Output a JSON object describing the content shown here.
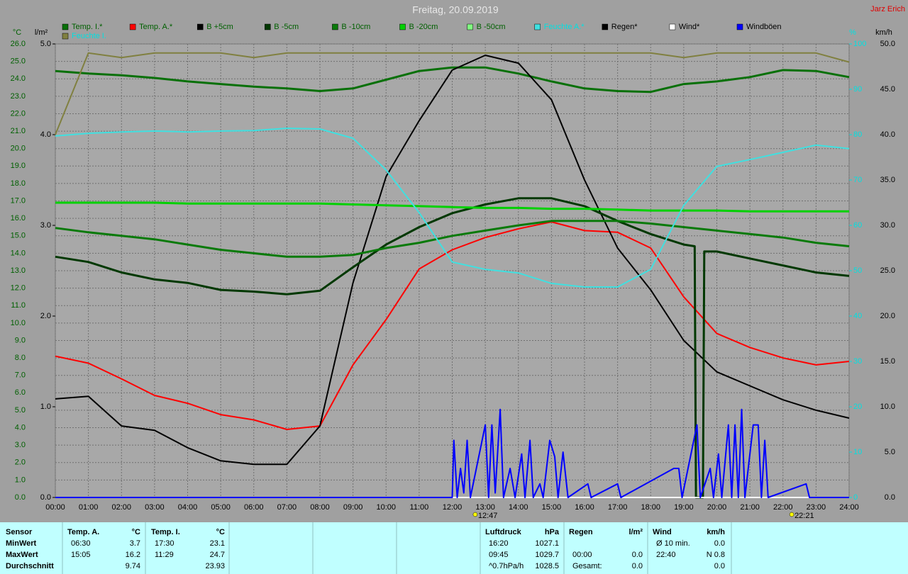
{
  "chart_data": {
    "type": "line",
    "title": "Freitag, 20.09.2019",
    "author": "Jarz Erich",
    "y_label": "°C",
    "y2_label": "l/m²",
    "y3_label": "%",
    "y4_label": "km/h",
    "x": [
      0,
      1,
      2,
      3,
      4,
      5,
      6,
      7,
      8,
      9,
      10,
      11,
      12,
      13,
      14,
      15,
      16,
      17,
      18,
      19,
      20,
      21,
      22,
      23,
      24
    ],
    "xlim": [
      0,
      24
    ],
    "xticks": [
      {
        "value": 0,
        "label": "00:00"
      },
      {
        "value": 1,
        "label": "01:00"
      },
      {
        "value": 2,
        "label": "02:00"
      },
      {
        "value": 3,
        "label": "03:00"
      },
      {
        "value": 4,
        "label": "04:00"
      },
      {
        "value": 5,
        "label": "05:00"
      },
      {
        "value": 6,
        "label": "06:00"
      },
      {
        "value": 7,
        "label": "07:00"
      },
      {
        "value": 8,
        "label": "08:00"
      },
      {
        "value": 9,
        "label": "09:00"
      },
      {
        "value": 10,
        "label": "10:00"
      },
      {
        "value": 11,
        "label": "11:00"
      },
      {
        "value": 12,
        "label": "12:00"
      },
      {
        "value": 13,
        "label": "13:00"
      },
      {
        "value": 14,
        "label": "14:00"
      },
      {
        "value": 15,
        "label": "15:00"
      },
      {
        "value": 16,
        "label": "16:00"
      },
      {
        "value": 17,
        "label": "17:00"
      },
      {
        "value": 18,
        "label": "18:00"
      },
      {
        "value": 19,
        "label": "19:00"
      },
      {
        "value": 20,
        "label": "20:00"
      },
      {
        "value": 21,
        "label": "21:00"
      },
      {
        "value": 22,
        "label": "22:00"
      },
      {
        "value": 23,
        "label": "23:00"
      },
      {
        "value": 24,
        "label": "24:00"
      }
    ],
    "ylim": [
      0,
      26
    ],
    "yticks": [
      {
        "value": 0,
        "label": "0.0"
      },
      {
        "value": 1,
        "label": "1.0"
      },
      {
        "value": 2,
        "label": "2.0"
      },
      {
        "value": 3,
        "label": "3.0"
      },
      {
        "value": 4,
        "label": "4.0"
      },
      {
        "value": 5,
        "label": "5.0"
      },
      {
        "value": 6,
        "label": "6.0"
      },
      {
        "value": 7,
        "label": "7.0"
      },
      {
        "value": 8,
        "label": "8.0"
      },
      {
        "value": 9,
        "label": "9.0"
      },
      {
        "value": 10,
        "label": "10.0"
      },
      {
        "value": 11,
        "label": "11.0"
      },
      {
        "value": 12,
        "label": "12.0"
      },
      {
        "value": 13,
        "label": "13.0"
      },
      {
        "value": 14,
        "label": "14.0"
      },
      {
        "value": 15,
        "label": "15.0"
      },
      {
        "value": 16,
        "label": "16.0"
      },
      {
        "value": 17,
        "label": "17.0"
      },
      {
        "value": 18,
        "label": "18.0"
      },
      {
        "value": 19,
        "label": "19.0"
      },
      {
        "value": 20,
        "label": "20.0"
      },
      {
        "value": 21,
        "label": "21.0"
      },
      {
        "value": 22,
        "label": "22.0"
      },
      {
        "value": 23,
        "label": "23.0"
      },
      {
        "value": 24,
        "label": "24.0"
      },
      {
        "value": 25,
        "label": "25.0"
      },
      {
        "value": 26,
        "label": "26.0"
      }
    ],
    "y2lim": [
      0,
      5
    ],
    "y2ticks": [
      {
        "value": 0,
        "label": "0.0"
      },
      {
        "value": 1,
        "label": "1.0"
      },
      {
        "value": 2,
        "label": "2.0"
      },
      {
        "value": 3,
        "label": "3.0"
      },
      {
        "value": 4,
        "label": "4.0"
      },
      {
        "value": 5,
        "label": "5.0"
      }
    ],
    "y3lim": [
      0,
      100
    ],
    "y3ticks": [
      0,
      10,
      20,
      30,
      40,
      50,
      60,
      70,
      80,
      90,
      100
    ],
    "y4lim": [
      0,
      50
    ],
    "y4ticks": [
      {
        "value": 0,
        "label": "0.0"
      },
      {
        "value": 5,
        "label": "5.0"
      },
      {
        "value": 10,
        "label": "10.0"
      },
      {
        "value": 15,
        "label": "15.0"
      },
      {
        "value": 20,
        "label": "20.0"
      },
      {
        "value": 25,
        "label": "25.0"
      },
      {
        "value": 30,
        "label": "30.0"
      },
      {
        "value": 35,
        "label": "35.0"
      },
      {
        "value": 40,
        "label": "40.0"
      },
      {
        "value": 45,
        "label": "45.0"
      },
      {
        "value": 50,
        "label": "50.0"
      }
    ],
    "grid": true,
    "series": [
      {
        "name": "Temp. I.*",
        "color": "#087008",
        "values": [
          24.45,
          24.3,
          24.2,
          24.05,
          23.85,
          23.7,
          23.55,
          23.45,
          23.3,
          23.45,
          23.95,
          24.45,
          24.65,
          24.65,
          24.3,
          23.85,
          23.45,
          23.3,
          23.25,
          23.7,
          23.85,
          24.1,
          24.5,
          24.45,
          24.1
        ]
      },
      {
        "name": "Temp. A.*",
        "color": "#ff0000",
        "values": [
          8.1,
          7.7,
          6.8,
          5.85,
          5.4,
          4.75,
          4.45,
          3.9,
          4.1,
          7.6,
          10.2,
          13.1,
          14.2,
          14.9,
          15.4,
          15.8,
          15.3,
          15.2,
          14.3,
          11.5,
          9.4,
          8.6,
          8.0,
          7.6,
          7.8
        ]
      },
      {
        "name": "B +5cm",
        "color": "#000000",
        "values": [
          5.65,
          5.8,
          4.1,
          3.85,
          2.85,
          2.1,
          1.9,
          1.9,
          4.1,
          12.3,
          18.4,
          21.6,
          24.5,
          25.35,
          24.9,
          22.8,
          18.2,
          14.3,
          11.9,
          9.0,
          7.2,
          6.4,
          5.6,
          5.0,
          4.55
        ]
      },
      {
        "name": "B -5cm",
        "color": "#003800",
        "x": [
          0,
          1,
          2,
          3,
          4,
          5,
          6,
          7,
          8,
          9,
          10,
          11,
          12,
          13,
          14,
          15,
          16,
          17,
          18,
          19,
          19.33,
          19.37,
          19.58,
          19.62,
          20,
          21,
          22,
          23,
          24
        ],
        "values": [
          13.8,
          13.5,
          12.9,
          12.5,
          12.3,
          11.9,
          11.8,
          11.65,
          11.85,
          13.2,
          14.5,
          15.5,
          16.3,
          16.8,
          17.15,
          17.15,
          16.7,
          15.85,
          15.1,
          14.5,
          14.4,
          0.0,
          0.0,
          14.1,
          14.1,
          13.7,
          13.3,
          12.9,
          12.7
        ]
      },
      {
        "name": "B -10cm",
        "color": "#0a7a0a",
        "values": [
          15.45,
          15.2,
          15.0,
          14.8,
          14.5,
          14.2,
          14.0,
          13.8,
          13.8,
          13.9,
          14.3,
          14.6,
          15.0,
          15.3,
          15.6,
          15.85,
          15.85,
          15.85,
          15.7,
          15.5,
          15.3,
          15.1,
          14.9,
          14.6,
          14.4
        ]
      },
      {
        "name": "B -20cm",
        "color": "#00d000",
        "values": [
          16.9,
          16.9,
          16.9,
          16.9,
          16.85,
          16.85,
          16.85,
          16.85,
          16.85,
          16.8,
          16.75,
          16.7,
          16.65,
          16.6,
          16.6,
          16.55,
          16.55,
          16.5,
          16.45,
          16.45,
          16.45,
          16.4,
          16.4,
          16.4,
          16.4
        ]
      },
      {
        "name": "B -50cm",
        "color": "#80ff80",
        "values": [
          null,
          null,
          null,
          null,
          null,
          null,
          null,
          null,
          null,
          null,
          null,
          null,
          null,
          null,
          null,
          null,
          null,
          null,
          null,
          null,
          null,
          null,
          null,
          null,
          null
        ]
      },
      {
        "name": "Feuchte A.*",
        "color": "#40e0e0",
        "axis": "y3",
        "values": [
          79.7,
          80.3,
          80.6,
          80.8,
          80.6,
          80.8,
          80.9,
          81.4,
          81.25,
          79.2,
          72.2,
          62.8,
          51.9,
          50.3,
          49.5,
          47.2,
          46.4,
          46.4,
          50.3,
          64.4,
          73.0,
          74.5,
          76.1,
          77.7,
          76.9
        ]
      },
      {
        "name": "Regen*",
        "color": "#000000",
        "axis": "y2",
        "values": [
          0,
          0,
          0,
          0,
          0,
          0,
          0,
          0,
          0,
          0,
          0,
          0,
          0,
          0,
          0,
          0,
          0,
          0,
          0,
          0,
          0,
          0,
          0,
          0,
          0
        ]
      },
      {
        "name": "Wind*",
        "color": "#ffffff",
        "axis": "y4",
        "values": [
          0,
          0,
          0,
          0,
          0,
          0,
          0,
          0,
          0,
          0,
          0,
          0,
          0,
          0,
          0,
          0,
          0,
          0,
          0,
          0,
          0,
          0,
          0,
          0,
          0
        ]
      },
      {
        "name": "Windböen",
        "color": "#0000ff",
        "axis": "y4",
        "x": [
          0,
          12,
          12.05,
          12.15,
          12.25,
          12.35,
          12.45,
          12.55,
          13.0,
          13.1,
          13.2,
          13.3,
          13.45,
          13.55,
          13.75,
          13.9,
          14.1,
          14.2,
          14.35,
          14.45,
          14.65,
          14.75,
          14.95,
          15.1,
          15.2,
          15.35,
          15.5,
          16.1,
          16.2,
          17.0,
          17.1,
          18.7,
          18.85,
          18.95,
          19.4,
          19.5,
          19.8,
          19.9,
          20.05,
          20.15,
          20.35,
          20.45,
          20.55,
          20.65,
          20.75,
          20.85,
          21.1,
          21.25,
          21.35,
          21.45,
          21.55,
          22.7,
          22.8,
          24
        ],
        "values": [
          0,
          0,
          6.3,
          0,
          3.2,
          0.5,
          6.3,
          0,
          8,
          0,
          8,
          0.5,
          9.7,
          0,
          3.2,
          0,
          4.8,
          0,
          6.3,
          0,
          1.5,
          0,
          6.3,
          4.5,
          0,
          5,
          0,
          1.5,
          0,
          1.5,
          0,
          3.2,
          3.2,
          0,
          8,
          0,
          3.2,
          0,
          4.8,
          0,
          8,
          0,
          8,
          0,
          9.7,
          0,
          8,
          8,
          0,
          6.3,
          0,
          1.5,
          0,
          0
        ]
      },
      {
        "name": "Feuchte I.",
        "color": "#808040",
        "axis": "y3",
        "values": [
          80,
          98,
          97,
          98,
          98,
          98,
          97,
          98,
          98,
          98,
          98,
          98,
          98,
          98,
          98,
          98,
          98,
          98,
          98,
          97,
          98,
          98,
          98,
          98,
          96
        ]
      }
    ],
    "annotations": [
      {
        "text": "12:47",
        "x": 12.78
      },
      {
        "text": "22:21",
        "x": 22.35
      }
    ]
  },
  "table": {
    "row_labels": [
      "Sensor",
      "MinWert",
      "MaxWert",
      "Durchschnitt"
    ],
    "groups": [
      {
        "name": "Temp. A.",
        "unit": "°C",
        "rows": [
          [
            "06:30",
            "3.7"
          ],
          [
            "15:05",
            "16.2"
          ],
          [
            null,
            "9.74"
          ]
        ]
      },
      {
        "name": "Temp. I.",
        "unit": "°C",
        "rows": [
          [
            "17:30",
            "23.1"
          ],
          [
            "11:29",
            "24.7"
          ],
          [
            null,
            "23.93"
          ]
        ]
      },
      {
        "name": "Luftdruck",
        "unit": "hPa",
        "rows": [
          [
            "16:20",
            "1027.1"
          ],
          [
            "09:45",
            "1029.7"
          ],
          [
            "^0.7hPa/h",
            "1028.5"
          ]
        ]
      },
      {
        "name": "Regen",
        "unit": "l/m²",
        "rows": [
          [
            null,
            null
          ],
          [
            "00:00",
            "0.0"
          ],
          [
            "Gesamt:",
            "0.0"
          ]
        ]
      },
      {
        "name": "Wind",
        "unit": "km/h",
        "rows": [
          [
            "Ø 10 min.",
            "0.0"
          ],
          [
            "22:40",
            "N 0.8"
          ],
          [
            null,
            "0.0"
          ]
        ]
      }
    ]
  }
}
